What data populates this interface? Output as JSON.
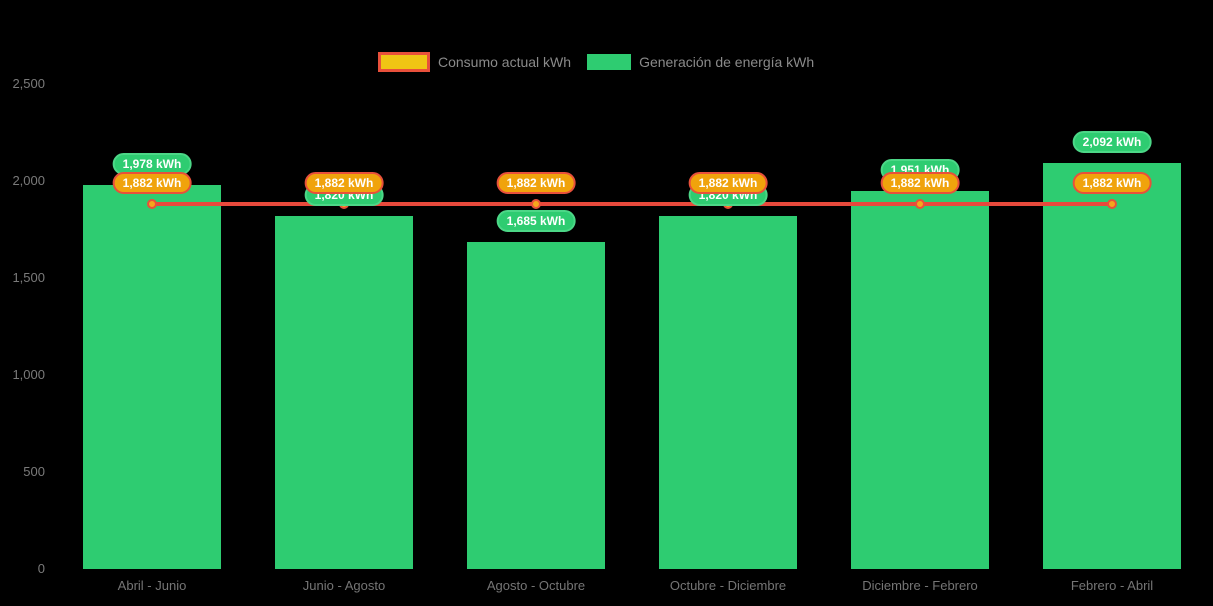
{
  "legend": {
    "items": [
      {
        "label": "Consumo actual kWh",
        "fill": "#F0C514",
        "border": "#E8503B"
      },
      {
        "label": "Generación de energía kWh",
        "fill": "#2ECC71"
      }
    ]
  },
  "chart_data": {
    "type": "bar",
    "title": "",
    "xlabel": "",
    "ylabel": "",
    "unit": "kWh",
    "categories": [
      "Abril - Junio",
      "Junio - Agosto",
      "Agosto - Octubre",
      "Octubre - Diciembre",
      "Diciembre - Febrero",
      "Febrero - Abril"
    ],
    "series": [
      {
        "name": "Consumo actual kWh",
        "type": "line",
        "values": [
          1882,
          1882,
          1882,
          1882,
          1882,
          1882
        ],
        "labels": [
          "1,882 kWh",
          "1,882 kWh",
          "1,882 kWh",
          "1,882 kWh",
          "1,882 kWh",
          "1,882 kWh"
        ],
        "line_color": "#E8493C",
        "point_color": "#F5A61C",
        "label_fill": "#F0A30C",
        "label_border": "#E8503B"
      },
      {
        "name": "Generación de energía kWh",
        "type": "bar",
        "values": [
          1978,
          1820,
          1685,
          1820,
          1951,
          2092
        ],
        "labels": [
          "1,978 kWh",
          "1,820 kWh",
          "1,685 kWh",
          "1,820 kWh",
          "1,951 kWh",
          "2,092 kWh"
        ],
        "color": "#2ECC71"
      }
    ],
    "ylim": [
      0,
      2500
    ],
    "yticks": [
      0,
      500,
      1000,
      1500,
      2000,
      2500
    ],
    "ytick_labels": [
      "0",
      "500",
      "1,000",
      "1,500",
      "2,000",
      "2,500"
    ],
    "grid": false,
    "legend_position": "top",
    "background": "#000000"
  }
}
